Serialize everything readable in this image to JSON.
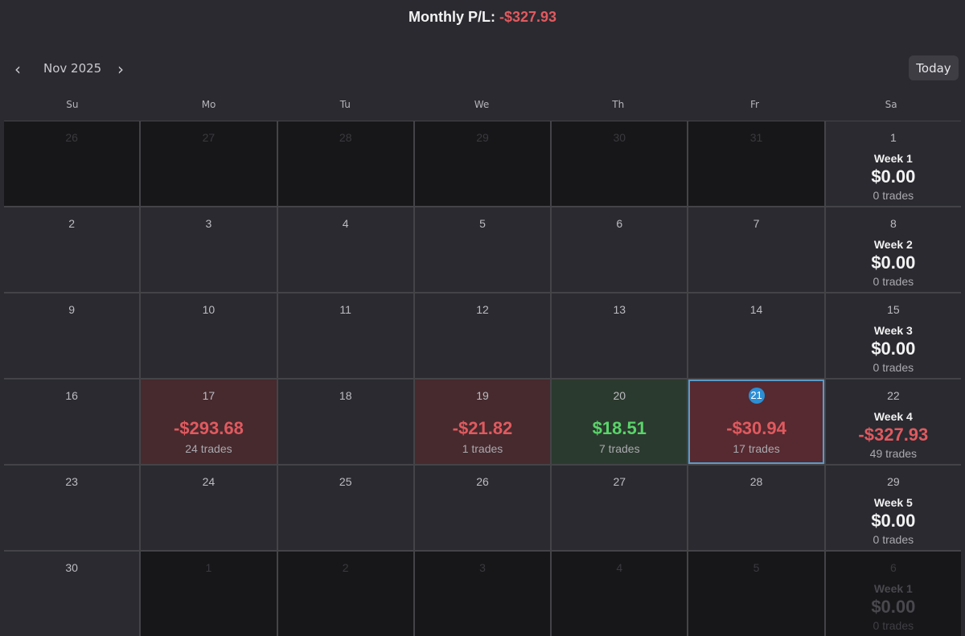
{
  "header": {
    "label": "Monthly P/L:",
    "value": "-$327.93"
  },
  "nav": {
    "prev": "‹",
    "next": "›",
    "month": "Nov 2025",
    "today": "Today"
  },
  "weekdays": [
    "Su",
    "Mo",
    "Tu",
    "We",
    "Th",
    "Fr",
    "Sa"
  ],
  "weeks": [
    {
      "days": [
        {
          "n": "26",
          "muted": true
        },
        {
          "n": "27",
          "muted": true
        },
        {
          "n": "28",
          "muted": true
        },
        {
          "n": "29",
          "muted": true
        },
        {
          "n": "30",
          "muted": true
        },
        {
          "n": "31",
          "muted": true
        }
      ],
      "summary": {
        "n": "1",
        "label": "Week 1",
        "value": "$0.00",
        "trades": "0 trades",
        "muted": false
      }
    },
    {
      "days": [
        {
          "n": "2"
        },
        {
          "n": "3"
        },
        {
          "n": "4"
        },
        {
          "n": "5"
        },
        {
          "n": "6"
        },
        {
          "n": "7"
        }
      ],
      "summary": {
        "n": "8",
        "label": "Week 2",
        "value": "$0.00",
        "trades": "0 trades"
      }
    },
    {
      "days": [
        {
          "n": "9"
        },
        {
          "n": "10"
        },
        {
          "n": "11"
        },
        {
          "n": "12"
        },
        {
          "n": "13"
        },
        {
          "n": "14"
        }
      ],
      "summary": {
        "n": "15",
        "label": "Week 3",
        "value": "$0.00",
        "trades": "0 trades"
      }
    },
    {
      "days": [
        {
          "n": "16"
        },
        {
          "n": "17",
          "pl": "-$293.68",
          "trades": "24 trades",
          "kind": "loss"
        },
        {
          "n": "18"
        },
        {
          "n": "19",
          "pl": "-$21.82",
          "trades": "1 trades",
          "kind": "loss"
        },
        {
          "n": "20",
          "pl": "$18.51",
          "trades": "7 trades",
          "kind": "gain"
        },
        {
          "n": "21",
          "pl": "-$30.94",
          "trades": "17 trades",
          "kind": "today"
        }
      ],
      "summary": {
        "n": "22",
        "label": "Week 4",
        "value": "-$327.93",
        "trades": "49 trades",
        "neg": true
      }
    },
    {
      "days": [
        {
          "n": "23"
        },
        {
          "n": "24"
        },
        {
          "n": "25"
        },
        {
          "n": "26"
        },
        {
          "n": "27"
        },
        {
          "n": "28"
        }
      ],
      "summary": {
        "n": "29",
        "label": "Week 5",
        "value": "$0.00",
        "trades": "0 trades"
      }
    },
    {
      "days": [
        {
          "n": "30"
        },
        {
          "n": "1",
          "muted": true
        },
        {
          "n": "2",
          "muted": true
        },
        {
          "n": "3",
          "muted": true
        },
        {
          "n": "4",
          "muted": true
        },
        {
          "n": "5",
          "muted": true
        }
      ],
      "summary": {
        "n": "6",
        "label": "Week 1",
        "value": "$0.00",
        "trades": "0 trades",
        "muted": true
      }
    }
  ],
  "colors": {
    "loss": "#e05a5f",
    "gain": "#5ad46a",
    "today_outline": "#5a9bc9",
    "today_badge": "#2b8fd6"
  }
}
